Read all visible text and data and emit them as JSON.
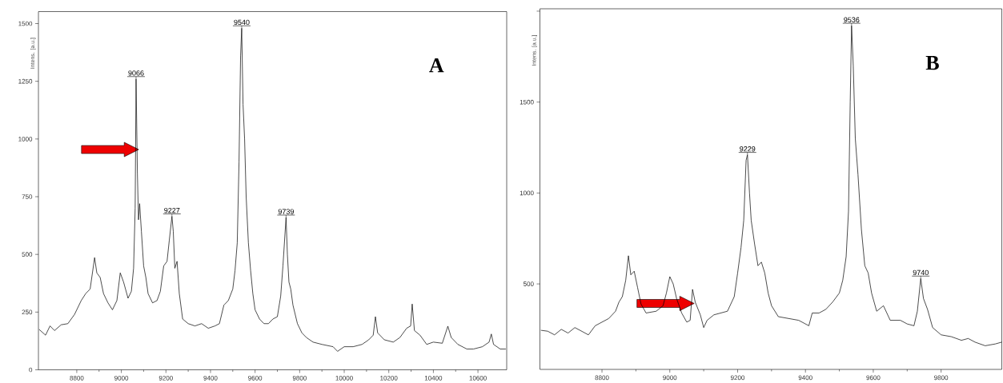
{
  "chart_data": [
    {
      "type": "line",
      "ylabel": "Intens. [a.u.]",
      "color": "#000000",
      "x": [
        8631,
        8660,
        8680,
        8700,
        8730,
        8760,
        8790,
        8820,
        8840,
        8860,
        8880,
        8890,
        8905,
        8920,
        8940,
        8960,
        8980,
        8995,
        9010,
        9030,
        9045,
        9055,
        9062,
        9066,
        9072,
        9077,
        9082,
        9090,
        9100,
        9110,
        9120,
        9140,
        9160,
        9175,
        9190,
        9205,
        9215,
        9227,
        9233,
        9240,
        9250,
        9260,
        9275,
        9300,
        9330,
        9360,
        9390,
        9420,
        9440,
        9460,
        9480,
        9500,
        9510,
        9520,
        9528,
        9535,
        9540,
        9546,
        9553,
        9560,
        9570,
        9580,
        9590,
        9600,
        9620,
        9640,
        9660,
        9680,
        9700,
        9715,
        9725,
        9739,
        9745,
        9752,
        9760,
        9770,
        9790,
        9810,
        9830,
        9860,
        9900,
        9950,
        9970,
        10000,
        10040,
        10080,
        10110,
        10130,
        10140,
        10150,
        10180,
        10220,
        10250,
        10280,
        10298,
        10305,
        10315,
        10340,
        10370,
        10400,
        10440,
        10465,
        10480,
        10510,
        10550,
        10580,
        10620,
        10650,
        10660,
        10670,
        10700,
        10725
      ],
      "values": [
        175,
        150,
        190,
        170,
        195,
        200,
        240,
        300,
        330,
        350,
        486,
        420,
        400,
        330,
        290,
        260,
        300,
        420,
        380,
        310,
        340,
        440,
        700,
        1260,
        850,
        650,
        720,
        600,
        450,
        400,
        330,
        290,
        300,
        340,
        450,
        470,
        560,
        665,
        600,
        440,
        470,
        330,
        220,
        200,
        190,
        200,
        180,
        190,
        200,
        280,
        300,
        350,
        430,
        550,
        900,
        1360,
        1480,
        1150,
        1000,
        750,
        550,
        430,
        330,
        260,
        220,
        200,
        200,
        220,
        230,
        320,
        450,
        660,
        500,
        380,
        350,
        280,
        200,
        160,
        140,
        120,
        110,
        100,
        80,
        100,
        100,
        110,
        130,
        150,
        230,
        160,
        130,
        120,
        140,
        180,
        190,
        285,
        170,
        150,
        110,
        120,
        115,
        189,
        140,
        110,
        90,
        90,
        100,
        120,
        155,
        110,
        90,
        90
      ],
      "xlim": [
        8628,
        10729
      ],
      "ylim": [
        0,
        1552
      ],
      "xticks": [
        8800,
        9000,
        9200,
        9400,
        9600,
        9800,
        10000,
        10200,
        10400,
        10600
      ],
      "yticks": [
        0,
        250,
        500,
        750,
        1000,
        1250,
        1500
      ],
      "annotations": [
        "A",
        {
          "text": "9066",
          "x": 9066,
          "y": 1260
        },
        {
          "text": "9227",
          "x": 9227,
          "y": 665
        },
        {
          "text": "9540",
          "x": 9540,
          "y": 1480
        },
        {
          "text": "9739",
          "x": 9739,
          "y": 660
        }
      ]
    },
    {
      "type": "line",
      "ylabel": "Intens. [a.u.]",
      "color": "#000000",
      "x": [
        8620,
        8640,
        8660,
        8680,
        8700,
        8720,
        8740,
        8760,
        8780,
        8800,
        8820,
        8840,
        8850,
        8860,
        8870,
        8878,
        8885,
        8895,
        8905,
        8915,
        8930,
        8960,
        8980,
        8990,
        9000,
        9010,
        9020,
        9035,
        9050,
        9060,
        9067,
        9075,
        9090,
        9100,
        9110,
        9130,
        9150,
        9170,
        9190,
        9200,
        9210,
        9218,
        9225,
        9229,
        9235,
        9240,
        9250,
        9260,
        9270,
        9280,
        9290,
        9300,
        9320,
        9350,
        9380,
        9410,
        9420,
        9440,
        9460,
        9480,
        9500,
        9510,
        9520,
        9527,
        9532,
        9536,
        9541,
        9547,
        9555,
        9565,
        9575,
        9585,
        9595,
        9610,
        9630,
        9650,
        9680,
        9700,
        9720,
        9730,
        9740,
        9748,
        9760,
        9775,
        9800,
        9830,
        9860,
        9880,
        9900,
        9930,
        9960,
        9979
      ],
      "values": [
        245,
        240,
        220,
        250,
        230,
        260,
        240,
        220,
        270,
        290,
        310,
        350,
        400,
        430,
        520,
        655,
        550,
        570,
        480,
        390,
        340,
        350,
        380,
        450,
        540,
        500,
        420,
        340,
        290,
        300,
        470,
        400,
        330,
        260,
        300,
        330,
        340,
        350,
        430,
        560,
        700,
        850,
        1180,
        1210,
        1000,
        850,
        720,
        600,
        620,
        560,
        450,
        380,
        320,
        310,
        300,
        270,
        340,
        340,
        360,
        400,
        450,
        520,
        650,
        900,
        1500,
        1920,
        1700,
        1300,
        1100,
        800,
        600,
        560,
        450,
        350,
        380,
        300,
        300,
        280,
        270,
        350,
        530,
        420,
        360,
        260,
        220,
        210,
        190,
        200,
        180,
        160,
        170,
        180
      ],
      "xlim": [
        8617,
        9979
      ],
      "ylim": [
        30,
        2013
      ],
      "xticks": [
        8800,
        9000,
        9200,
        9400,
        9600,
        9800
      ],
      "yticks": [
        500,
        1000,
        1500,
        {
          "value": 2000,
          "label": null
        }
      ],
      "annotations": [
        "B",
        {
          "text": "9229",
          "x": 9229,
          "y": 1210
        },
        {
          "text": "9536",
          "x": 9536,
          "y": 1920
        },
        {
          "text": "9740",
          "x": 9740,
          "y": 530
        }
      ]
    }
  ]
}
